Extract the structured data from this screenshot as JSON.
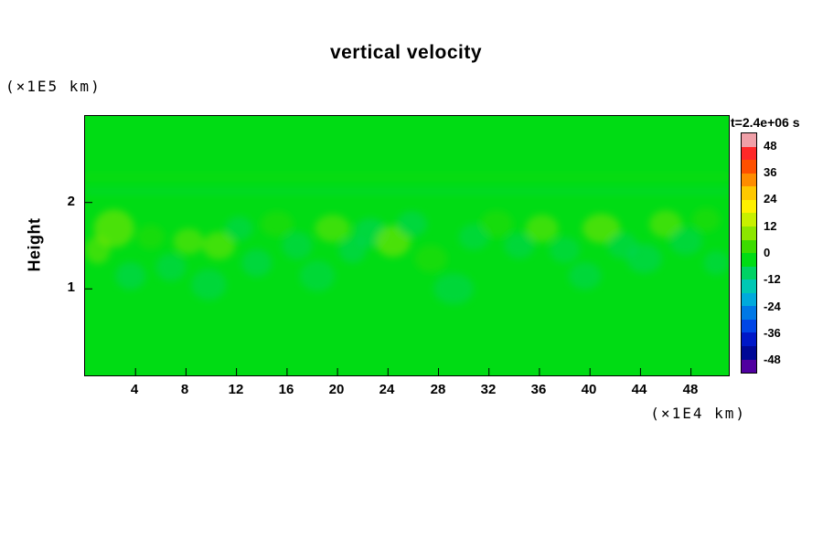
{
  "chart_data": {
    "type": "heatmap",
    "title": "vertical velocity",
    "ylabel": "Height",
    "ylabel_unit": "(×1E5 km)",
    "xlabel_unit": "(×1E4 km)",
    "x_range": [
      0,
      51
    ],
    "y_range": [
      0,
      3
    ],
    "x_ticks": [
      4,
      8,
      12,
      16,
      20,
      24,
      28,
      32,
      36,
      40,
      44,
      48
    ],
    "y_ticks": [
      1,
      2
    ],
    "grid": false,
    "background_value": 0,
    "background_color": "#00dc14",
    "colorbar": {
      "label": "t=2.4e+06 s",
      "position": "right",
      "range": [
        -54,
        54
      ],
      "ticks": [
        48,
        36,
        24,
        12,
        0,
        -12,
        -24,
        -36,
        -48
      ],
      "colors_top_to_bottom": [
        "#f0a0a8",
        "#ff2828",
        "#ff5000",
        "#ff8c00",
        "#ffc800",
        "#fff000",
        "#c8f000",
        "#8ce600",
        "#3cdc00",
        "#00dc14",
        "#00d264",
        "#00c8b4",
        "#00aadc",
        "#0078e6",
        "#0046e6",
        "#0018c8",
        "#000896",
        "#5000a0"
      ]
    },
    "bands": [
      {
        "y": 2.13,
        "h": 0.05,
        "v": -9
      },
      {
        "y": 2.3,
        "h": 0.04,
        "v": 6
      }
    ],
    "features": [
      {
        "x": 2.3,
        "y": 1.7,
        "rx": 1.6,
        "ry": 0.22,
        "v": 10
      },
      {
        "x": 1.0,
        "y": 1.45,
        "rx": 1.0,
        "ry": 0.16,
        "v": 7
      },
      {
        "x": 3.6,
        "y": 1.15,
        "rx": 1.2,
        "ry": 0.16,
        "v": -9
      },
      {
        "x": 5.2,
        "y": 1.6,
        "rx": 1.1,
        "ry": 0.14,
        "v": 6
      },
      {
        "x": 6.8,
        "y": 1.25,
        "rx": 1.2,
        "ry": 0.16,
        "v": -8
      },
      {
        "x": 8.2,
        "y": 1.55,
        "rx": 1.2,
        "ry": 0.15,
        "v": 7
      },
      {
        "x": 9.8,
        "y": 1.05,
        "rx": 1.4,
        "ry": 0.18,
        "v": -8
      },
      {
        "x": 10.6,
        "y": 1.5,
        "rx": 1.3,
        "ry": 0.16,
        "v": 8
      },
      {
        "x": 12.2,
        "y": 1.7,
        "rx": 1.1,
        "ry": 0.14,
        "v": -8
      },
      {
        "x": 13.6,
        "y": 1.3,
        "rx": 1.2,
        "ry": 0.16,
        "v": -9
      },
      {
        "x": 15.2,
        "y": 1.75,
        "rx": 1.3,
        "ry": 0.15,
        "v": 6
      },
      {
        "x": 16.8,
        "y": 1.5,
        "rx": 1.2,
        "ry": 0.16,
        "v": -8
      },
      {
        "x": 18.4,
        "y": 1.15,
        "rx": 1.4,
        "ry": 0.18,
        "v": -7
      },
      {
        "x": 19.6,
        "y": 1.7,
        "rx": 1.4,
        "ry": 0.16,
        "v": 7
      },
      {
        "x": 21.2,
        "y": 1.45,
        "rx": 1.1,
        "ry": 0.15,
        "v": -9
      },
      {
        "x": 22.6,
        "y": 1.65,
        "rx": 1.3,
        "ry": 0.17,
        "v": -10
      },
      {
        "x": 24.4,
        "y": 1.55,
        "rx": 1.4,
        "ry": 0.18,
        "v": 10
      },
      {
        "x": 25.9,
        "y": 1.75,
        "rx": 1.2,
        "ry": 0.15,
        "v": -9
      },
      {
        "x": 27.4,
        "y": 1.35,
        "rx": 1.3,
        "ry": 0.16,
        "v": 6
      },
      {
        "x": 29.2,
        "y": 1.0,
        "rx": 1.6,
        "ry": 0.18,
        "v": -8
      },
      {
        "x": 30.8,
        "y": 1.6,
        "rx": 1.2,
        "ry": 0.15,
        "v": -7
      },
      {
        "x": 32.6,
        "y": 1.75,
        "rx": 1.3,
        "ry": 0.16,
        "v": 6
      },
      {
        "x": 34.4,
        "y": 1.5,
        "rx": 1.2,
        "ry": 0.15,
        "v": -8
      },
      {
        "x": 36.2,
        "y": 1.7,
        "rx": 1.3,
        "ry": 0.16,
        "v": 7
      },
      {
        "x": 38.0,
        "y": 1.45,
        "rx": 1.2,
        "ry": 0.15,
        "v": -7
      },
      {
        "x": 39.6,
        "y": 1.15,
        "rx": 1.3,
        "ry": 0.16,
        "v": -8
      },
      {
        "x": 40.9,
        "y": 1.7,
        "rx": 1.5,
        "ry": 0.17,
        "v": 9
      },
      {
        "x": 42.6,
        "y": 1.5,
        "rx": 1.2,
        "ry": 0.15,
        "v": -8
      },
      {
        "x": 44.3,
        "y": 1.35,
        "rx": 1.4,
        "ry": 0.17,
        "v": -9
      },
      {
        "x": 46.0,
        "y": 1.75,
        "rx": 1.3,
        "ry": 0.16,
        "v": 7
      },
      {
        "x": 47.6,
        "y": 1.55,
        "rx": 1.3,
        "ry": 0.16,
        "v": -8
      },
      {
        "x": 49.2,
        "y": 1.8,
        "rx": 1.1,
        "ry": 0.14,
        "v": 6
      },
      {
        "x": 50.0,
        "y": 1.3,
        "rx": 1.0,
        "ry": 0.14,
        "v": -7
      }
    ]
  }
}
